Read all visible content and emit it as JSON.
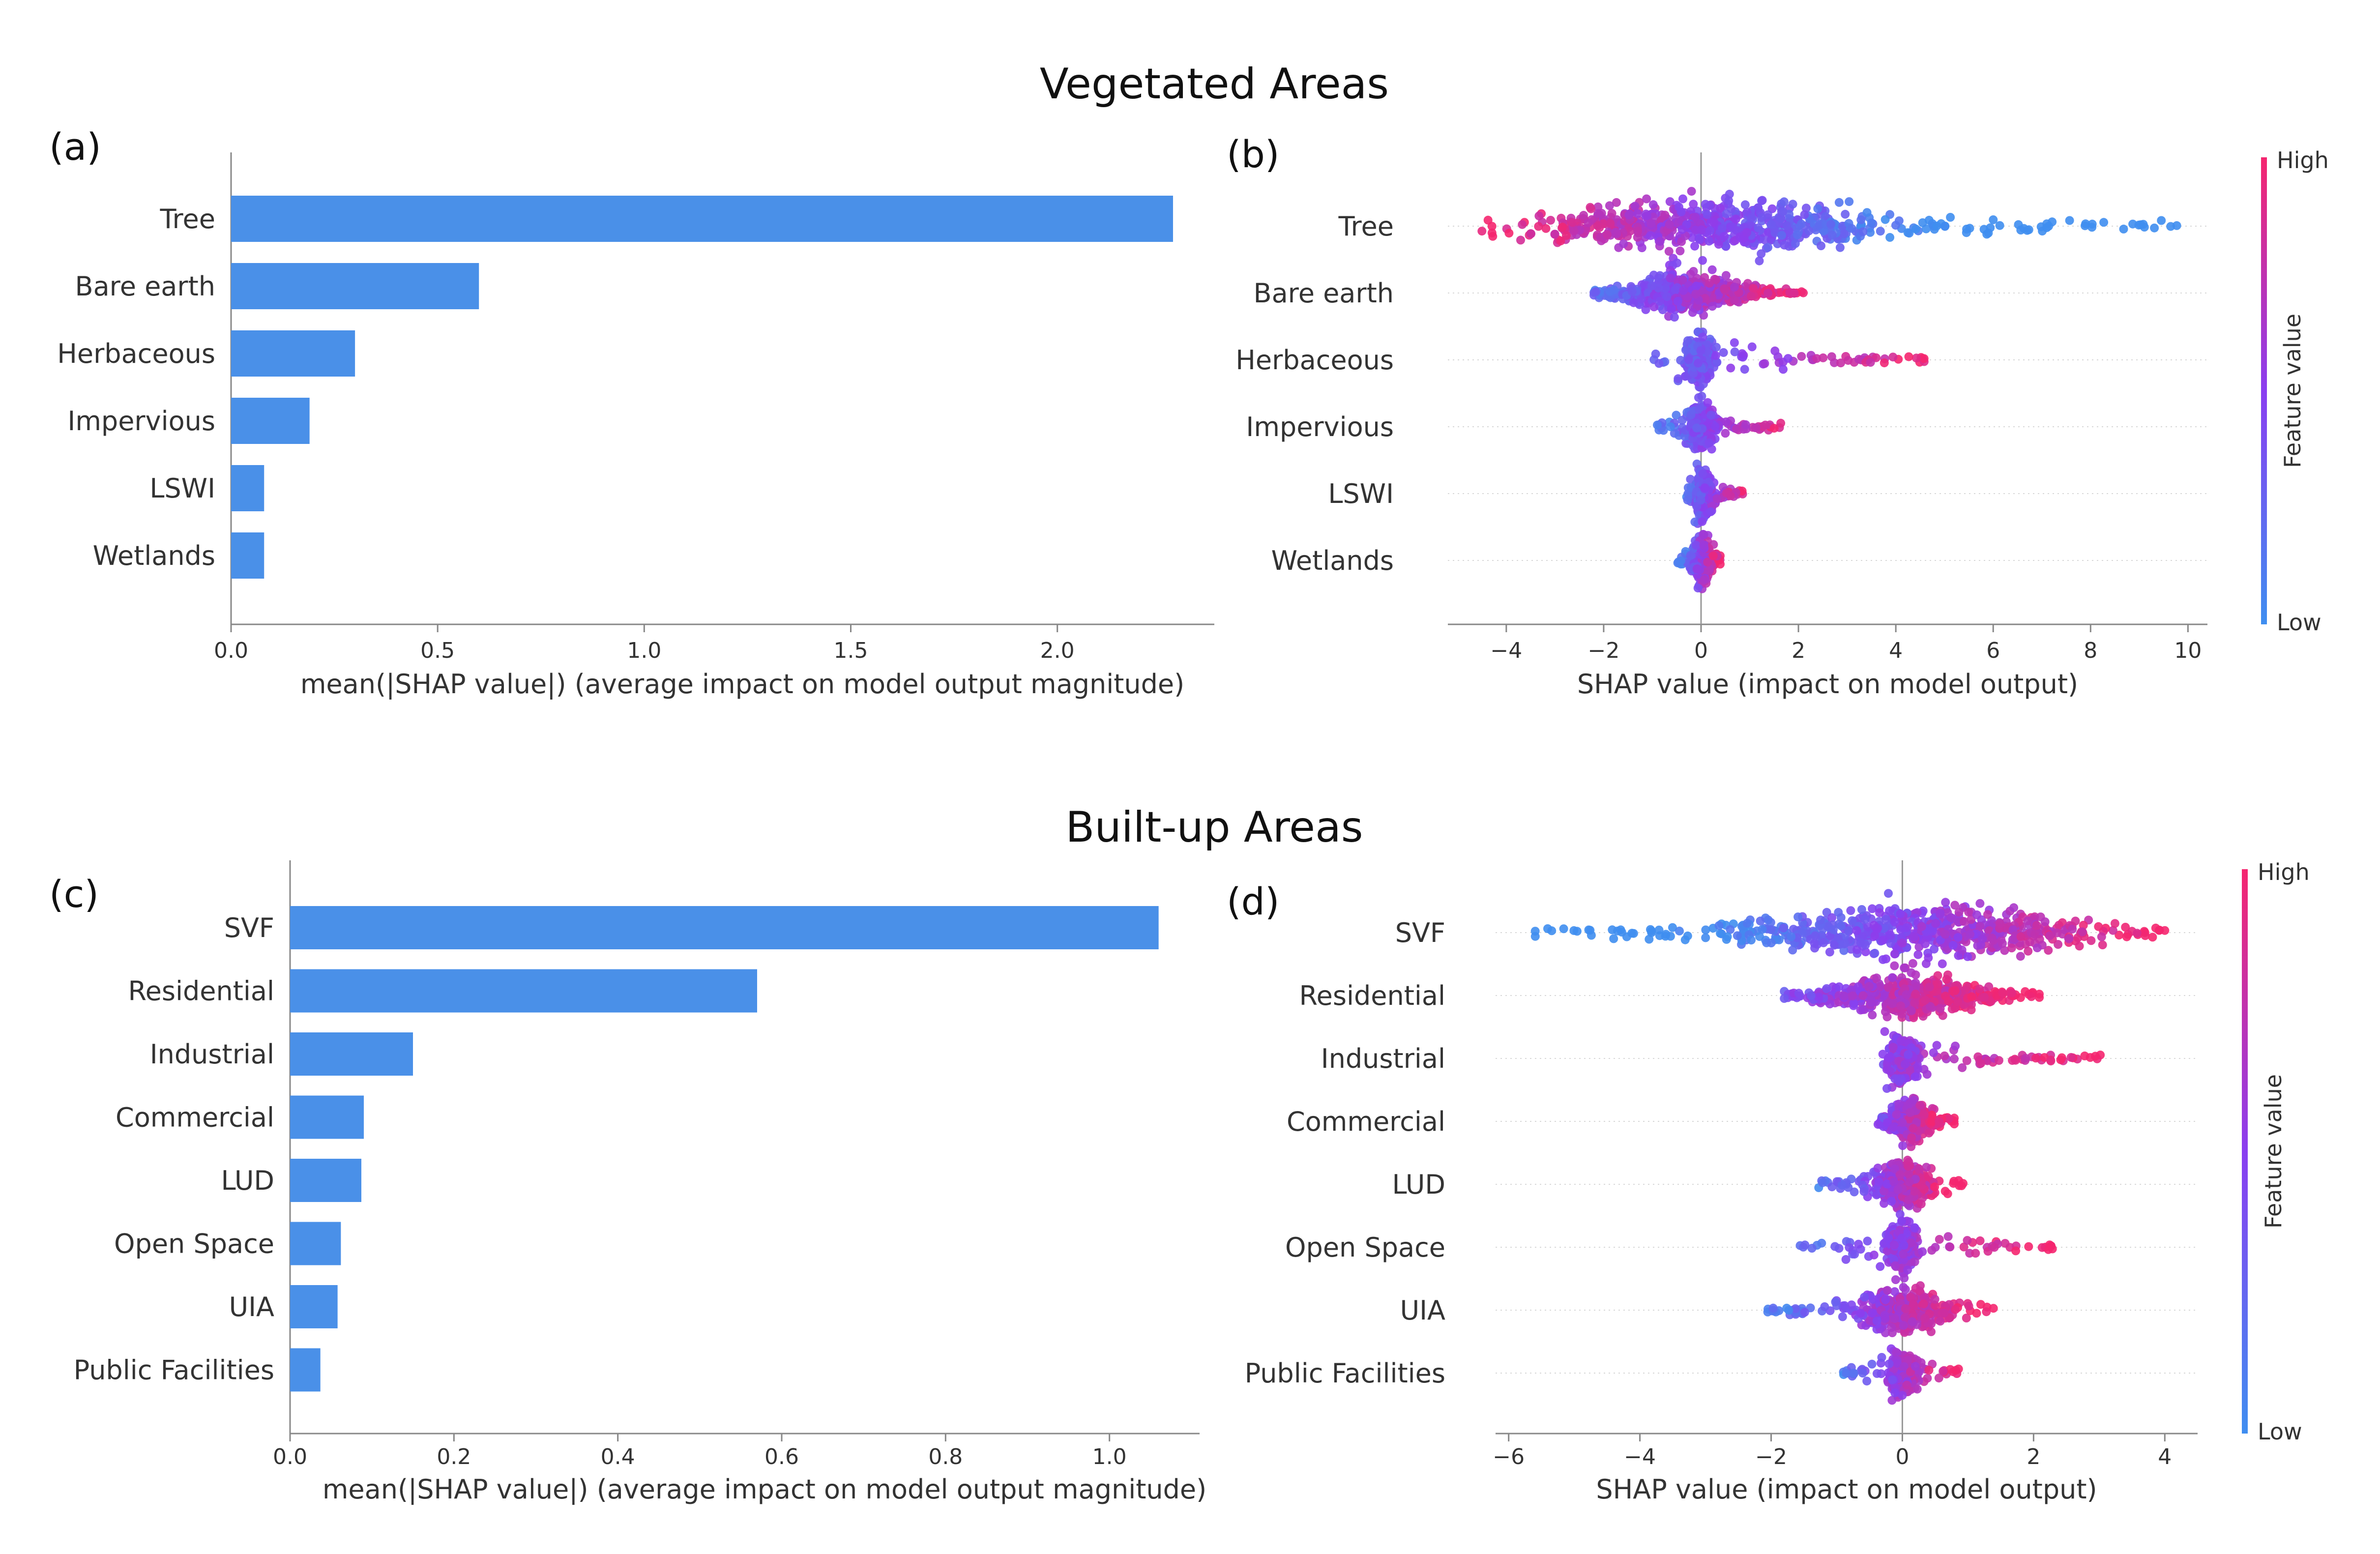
{
  "titles": {
    "top": "Vegetated Areas",
    "bottom": "Built-up Areas"
  },
  "colors": {
    "bar": "#4a90e8",
    "low": "#3f8ef0",
    "mid": "#8a3ef0",
    "high": "#f5266f",
    "axis": "#888888",
    "grid": "#d8d8d8"
  },
  "chart_data": [
    {
      "panel": "(a)",
      "type": "bar",
      "orientation": "horizontal",
      "categories": [
        "Tree",
        "Bare earth",
        "Herbaceous",
        "Impervious",
        "LSWI",
        "Wetlands"
      ],
      "values": [
        2.28,
        0.6,
        0.3,
        0.19,
        0.08,
        0.08
      ],
      "xlabel": "mean(|SHAP value|) (average impact on model output magnitude)",
      "xlim": [
        0.0,
        2.38
      ],
      "xticks": [
        0.0,
        0.5,
        1.0,
        1.5,
        2.0
      ],
      "xtick_labels": [
        "0.0",
        "0.5",
        "1.0",
        "1.5",
        "2.0"
      ]
    },
    {
      "panel": "(b)",
      "type": "scatter",
      "subtype": "beeswarm",
      "categories": [
        "Tree",
        "Bare earth",
        "Herbaceous",
        "Impervious",
        "LSWI",
        "Wetlands"
      ],
      "distributions": [
        {
          "range": [
            -4.5,
            9.8
          ],
          "core": [
            -3.5,
            3.8
          ],
          "spread": 0.42,
          "density": 1.0
        },
        {
          "range": [
            -2.2,
            2.1
          ],
          "core": [
            -1.7,
            1.2
          ],
          "spread": 0.32,
          "density": 0.8
        },
        {
          "range": [
            -1.1,
            4.6
          ],
          "core": [
            -0.3,
            0.2
          ],
          "spread": 0.36,
          "density": 0.55
        },
        {
          "range": [
            -0.9,
            1.7
          ],
          "core": [
            -0.3,
            0.3
          ],
          "spread": 0.34,
          "density": 0.5
        },
        {
          "range": [
            -0.3,
            0.9
          ],
          "core": [
            -0.1,
            0.2
          ],
          "spread": 0.38,
          "density": 0.45
        },
        {
          "range": [
            -0.5,
            0.4
          ],
          "core": [
            -0.2,
            0.2
          ],
          "spread": 0.38,
          "density": 0.45
        }
      ],
      "xlabel": "SHAP value (impact on model output)",
      "xlim": [
        -5.2,
        10.4
      ],
      "xticks": [
        -4,
        -2,
        0,
        2,
        4,
        6,
        8,
        10
      ],
      "xtick_labels": [
        "−4",
        "−2",
        "0",
        "2",
        "4",
        "6",
        "8",
        "10"
      ],
      "colorbar": {
        "title": "Feature value",
        "high": "High",
        "low": "Low"
      }
    },
    {
      "panel": "(c)",
      "type": "bar",
      "orientation": "horizontal",
      "categories": [
        "SVF",
        "Residential",
        "Industrial",
        "Commercial",
        "LUD",
        "Open Space",
        "UIA",
        "Public Facilities"
      ],
      "values": [
        1.06,
        0.57,
        0.15,
        0.09,
        0.087,
        0.062,
        0.058,
        0.037
      ],
      "xlabel": "mean(|SHAP value|) (average impact on model output magnitude)",
      "xlim": [
        0.0,
        1.11
      ],
      "xticks": [
        0.0,
        0.2,
        0.4,
        0.6,
        0.8,
        1.0
      ],
      "xtick_labels": [
        "0.0",
        "0.2",
        "0.4",
        "0.6",
        "0.8",
        "1.0"
      ]
    },
    {
      "panel": "(d)",
      "type": "scatter",
      "subtype": "beeswarm",
      "categories": [
        "SVF",
        "Residential",
        "Industrial",
        "Commercial",
        "LUD",
        "Open Space",
        "UIA",
        "Public Facilities"
      ],
      "distributions": [
        {
          "range": [
            -5.7,
            4.0
          ],
          "core": [
            -2.5,
            3.0
          ],
          "spread": 0.44,
          "density": 1.0
        },
        {
          "range": [
            -1.8,
            2.1
          ],
          "core": [
            -1.2,
            1.4
          ],
          "spread": 0.38,
          "density": 0.8
        },
        {
          "range": [
            -0.3,
            3.1
          ],
          "core": [
            -0.2,
            0.2
          ],
          "spread": 0.36,
          "density": 0.55
        },
        {
          "range": [
            -0.4,
            0.8
          ],
          "core": [
            -0.2,
            0.4
          ],
          "spread": 0.36,
          "density": 0.5
        },
        {
          "range": [
            -1.3,
            1.0
          ],
          "core": [
            -0.4,
            0.4
          ],
          "spread": 0.38,
          "density": 0.55
        },
        {
          "range": [
            -1.6,
            2.3
          ],
          "core": [
            -0.2,
            0.2
          ],
          "spread": 0.36,
          "density": 0.55
        },
        {
          "range": [
            -2.1,
            1.4
          ],
          "core": [
            -0.6,
            0.6
          ],
          "spread": 0.38,
          "density": 0.6
        },
        {
          "range": [
            -0.9,
            0.9
          ],
          "core": [
            -0.2,
            0.2
          ],
          "spread": 0.36,
          "density": 0.45
        }
      ],
      "xlabel": "SHAP value (impact on model output)",
      "xlim": [
        -6.2,
        4.5
      ],
      "xticks": [
        -6,
        -4,
        -2,
        0,
        2,
        4
      ],
      "xtick_labels": [
        "−6",
        "−4",
        "−2",
        "0",
        "2",
        "4"
      ],
      "colorbar": {
        "title": "Feature value",
        "high": "High",
        "low": "Low"
      }
    }
  ]
}
